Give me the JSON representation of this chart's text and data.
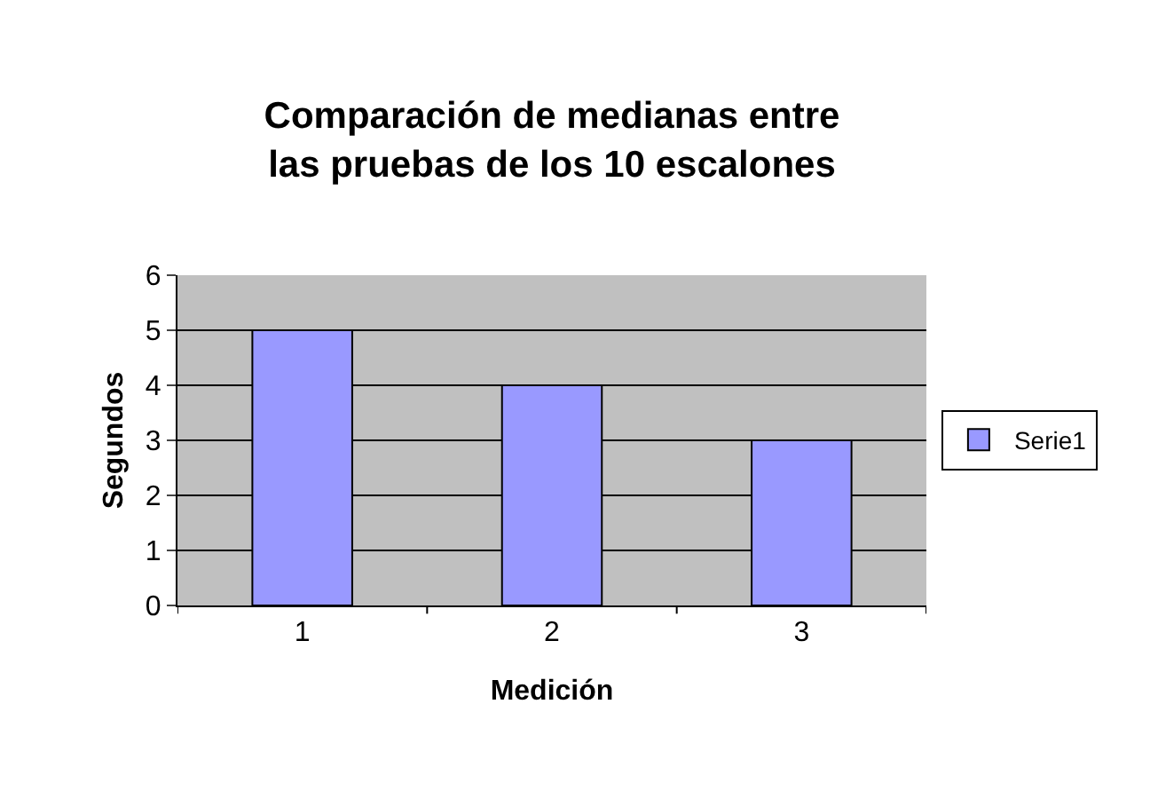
{
  "chart_data": {
    "type": "bar",
    "title": "Comparación de medianas entre las pruebas de los 10 escalones",
    "xlabel": "Medición",
    "ylabel": "Segundos",
    "categories": [
      "1",
      "2",
      "3"
    ],
    "series": [
      {
        "name": "Serie1",
        "color": "#9999ff",
        "values": [
          5,
          4,
          3
        ]
      }
    ],
    "ylim": [
      0,
      6
    ],
    "yticks": [
      0,
      1,
      2,
      3,
      4,
      5,
      6
    ],
    "grid": "y",
    "legend": "right"
  }
}
